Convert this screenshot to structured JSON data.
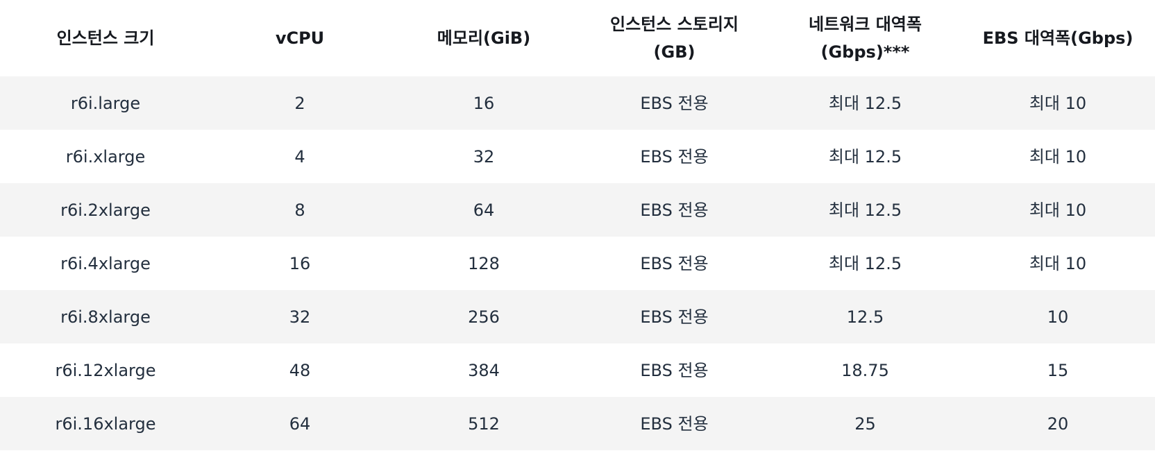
{
  "table": {
    "headers": [
      "인스턴스 크기",
      "vCPU",
      "메모리(GiB)",
      "인스턴스 스토리지\n(GB)",
      "네트워크 대역폭\n(Gbps)***",
      "EBS 대역폭(Gbps)"
    ],
    "rows": [
      [
        "r6i.large",
        "2",
        "16",
        "EBS 전용",
        "최대 12.5",
        "최대 10"
      ],
      [
        "r6i.xlarge",
        "4",
        "32",
        "EBS 전용",
        "최대 12.5",
        "최대 10"
      ],
      [
        "r6i.2xlarge",
        "8",
        "64",
        "EBS 전용",
        "최대 12.5",
        "최대 10"
      ],
      [
        "r6i.4xlarge",
        "16",
        "128",
        "EBS 전용",
        "최대 12.5",
        "최대 10"
      ],
      [
        "r6i.8xlarge",
        "32",
        "256",
        "EBS 전용",
        "12.5",
        "10"
      ],
      [
        "r6i.12xlarge",
        "48",
        "384",
        "EBS 전용",
        "18.75",
        "15"
      ],
      [
        "r6i.16xlarge",
        "64",
        "512",
        "EBS 전용",
        "25",
        "20"
      ]
    ]
  }
}
